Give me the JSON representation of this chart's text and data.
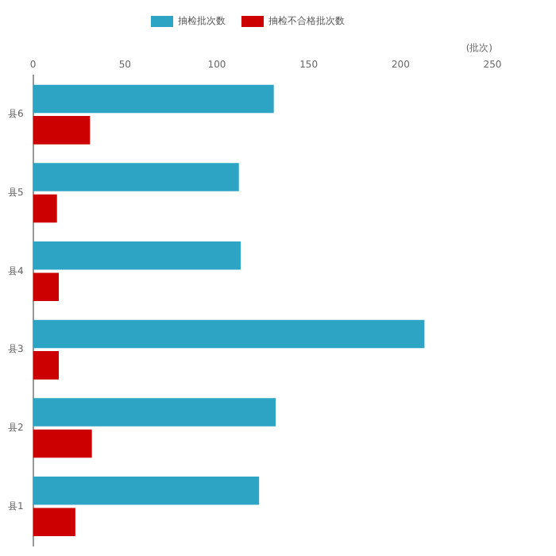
{
  "chart_data": {
    "type": "bar",
    "orientation": "horizontal",
    "categories": [
      "县6",
      "县5",
      "县4",
      "县3",
      "县2",
      "县1"
    ],
    "series": [
      {
        "name": "抽检批次数",
        "color": "#2ea4c4",
        "values": [
          131,
          112,
          113,
          213,
          132,
          123
        ]
      },
      {
        "name": "抽检不合格批次数",
        "color": "#cc0000",
        "values": [
          31,
          13,
          14,
          14,
          32,
          23
        ]
      }
    ],
    "xlabel": "(批次)",
    "xlim": [
      0,
      250
    ],
    "xticks": [
      0,
      50,
      100,
      150,
      200,
      250
    ],
    "grid": false,
    "legend": "top"
  }
}
